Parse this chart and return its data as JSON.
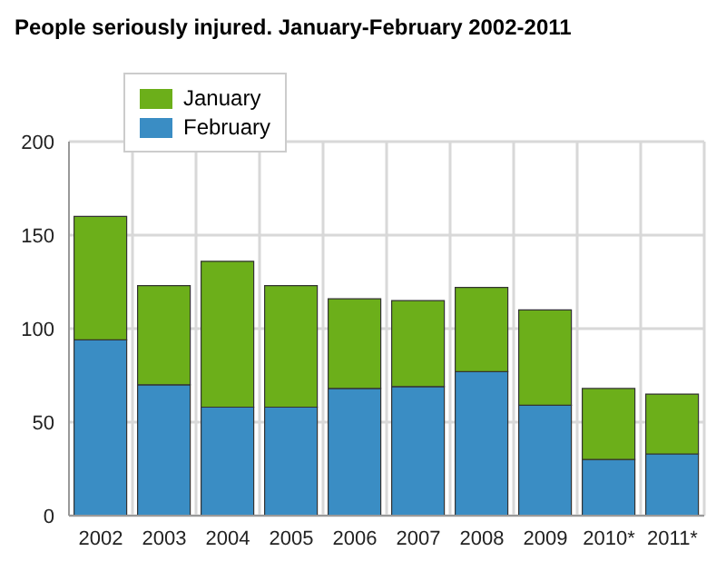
{
  "chart_data": {
    "type": "bar",
    "title": "People seriously injured. January-February 2002-2011",
    "categories": [
      "2002",
      "2003",
      "2004",
      "2005",
      "2006",
      "2007",
      "2008",
      "2009",
      "2010*",
      "2011*"
    ],
    "stacked": true,
    "series": [
      {
        "name": "February",
        "color": "#3a8dc4",
        "values": [
          94,
          70,
          58,
          58,
          68,
          69,
          77,
          59,
          30,
          33
        ]
      },
      {
        "name": "January",
        "color": "#6caf1a",
        "values": [
          66,
          53,
          78,
          65,
          48,
          46,
          45,
          51,
          38,
          32
        ]
      }
    ],
    "ylim": [
      0,
      200
    ],
    "yticks": [
      0,
      50,
      100,
      150,
      200
    ],
    "grid": true,
    "legend": "top"
  }
}
